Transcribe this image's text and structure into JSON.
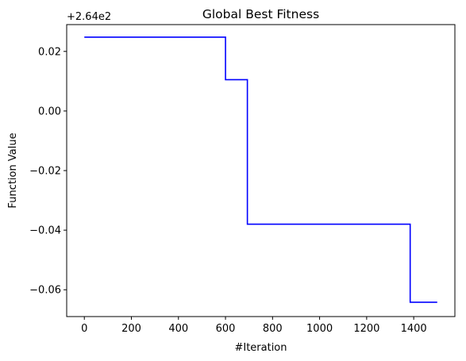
{
  "chart_data": {
    "type": "line",
    "title": "Global Best Fitness",
    "xlabel": "#Iteration",
    "ylabel": "Function Value",
    "offset_text": "+2.64e2",
    "xlim": [
      -75,
      1575
    ],
    "ylim": [
      -0.069,
      0.029
    ],
    "xticks": [
      0,
      200,
      400,
      600,
      800,
      1000,
      1200,
      1400
    ],
    "yticks": [
      0.02,
      0.0,
      -0.02,
      -0.04,
      -0.06
    ],
    "xtick_labels": [
      "0",
      "200",
      "400",
      "600",
      "800",
      "1000",
      "1200",
      "1400"
    ],
    "ytick_labels": [
      "0.02",
      "0.00",
      "−0.02",
      "−0.04",
      "−0.06"
    ],
    "grid": false,
    "series": [
      {
        "color": "#0000ff",
        "step": true,
        "points": [
          [
            0,
            0.0248
          ],
          [
            600,
            0.0248
          ],
          [
            600,
            0.0105
          ],
          [
            693,
            0.0105
          ],
          [
            693,
            -0.038
          ],
          [
            1385,
            -0.038
          ],
          [
            1385,
            -0.0642
          ],
          [
            1500,
            -0.0642
          ]
        ]
      }
    ]
  }
}
